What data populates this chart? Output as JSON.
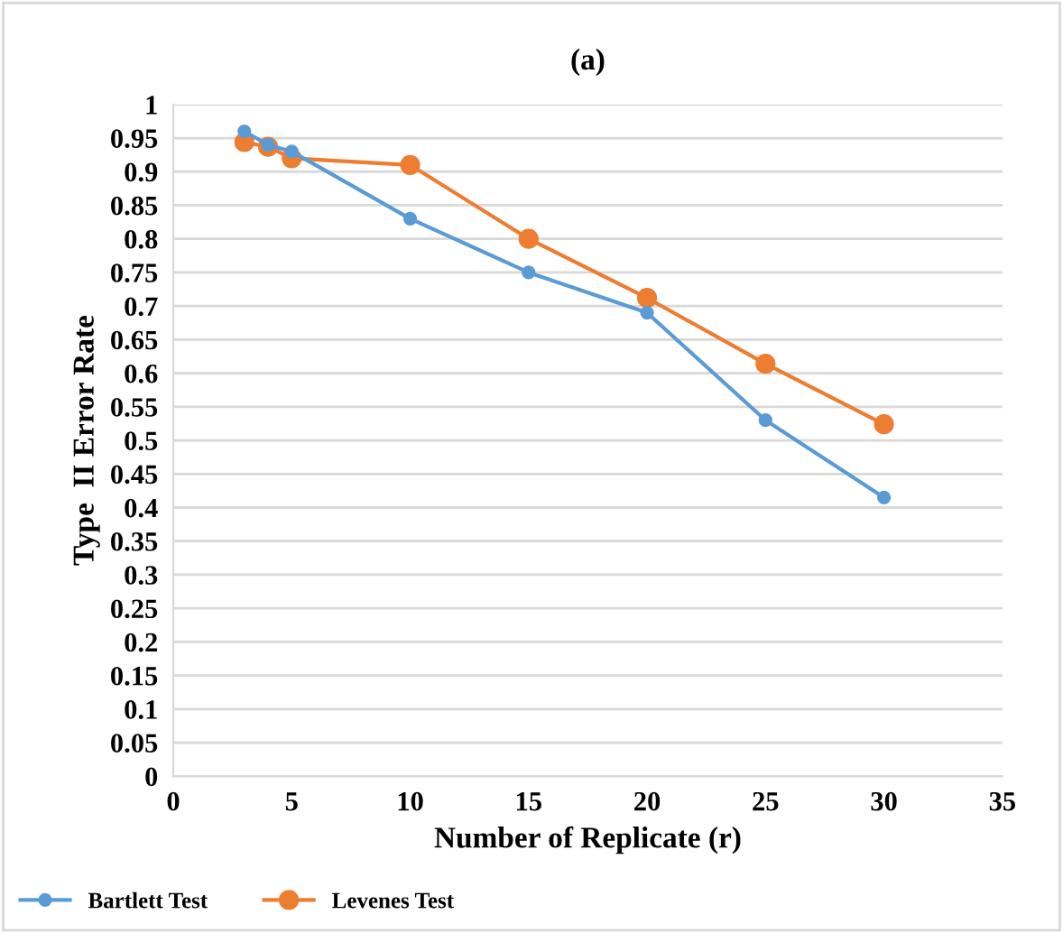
{
  "chart_data": {
    "type": "line",
    "title": "(a)",
    "xlabel": "Number of Replicate (r)",
    "ylabel": "Type  II Error Rate",
    "x": [
      3,
      4,
      5,
      10,
      15,
      20,
      25,
      30
    ],
    "series": [
      {
        "name": "Bartlett Test",
        "color": "#5b9bd5",
        "values": [
          0.96,
          0.94,
          0.93,
          0.83,
          0.75,
          0.69,
          0.53,
          0.415
        ]
      },
      {
        "name": "Levenes Test",
        "color": "#ed7d31",
        "values": [
          0.944,
          0.937,
          0.92,
          0.91,
          0.8,
          0.712,
          0.614,
          0.524
        ]
      }
    ],
    "xlim": [
      0,
      35
    ],
    "xticks": [
      0,
      5,
      10,
      15,
      20,
      25,
      30,
      35
    ],
    "ylim": [
      0,
      1
    ],
    "yticks": [
      0,
      0.05,
      0.1,
      0.15,
      0.2,
      0.25,
      0.3,
      0.35,
      0.4,
      0.45,
      0.5,
      0.55,
      0.6,
      0.65,
      0.7,
      0.75,
      0.8,
      0.85,
      0.9,
      0.95,
      1
    ],
    "grid": "y",
    "legend": "bottom left",
    "marker": "circle",
    "line_style": "solid"
  }
}
